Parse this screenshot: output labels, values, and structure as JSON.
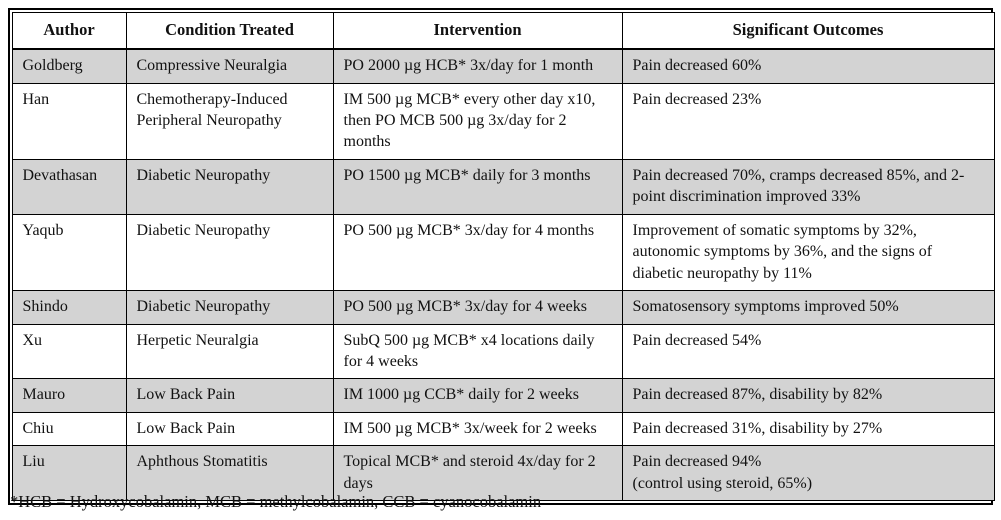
{
  "table": {
    "columns": [
      "Author",
      "Condition Treated",
      "Intervention",
      "Significant Outcomes"
    ],
    "rows": [
      {
        "author": "Goldberg",
        "condition": "Compressive Neuralgia",
        "intervention": "PO 2000 µg HCB* 3x/day for 1 month",
        "outcomes": "Pain decreased 60%",
        "shaded": true
      },
      {
        "author": "Han",
        "condition": "Chemotherapy-Induced Peripheral Neuropathy",
        "intervention": "IM 500 µg MCB* every other day x10, then PO MCB 500 µg 3x/day for 2 months",
        "outcomes": "Pain decreased 23%",
        "shaded": false
      },
      {
        "author": "Devathasan",
        "condition": "Diabetic Neuropathy",
        "intervention": "PO 1500 µg MCB* daily for 3 months",
        "outcomes": "Pain decreased 70%, cramps decreased 85%, and 2-point discrimination improved 33%",
        "shaded": true
      },
      {
        "author": "Yaqub",
        "condition": "Diabetic Neuropathy",
        "intervention": "PO 500 µg MCB* 3x/day for 4 months",
        "outcomes": "Improvement of somatic symptoms by 32%, autonomic symptoms by 36%, and the signs of diabetic neuropathy by 11%",
        "shaded": false
      },
      {
        "author": "Shindo",
        "condition": "Diabetic Neuropathy",
        "intervention": "PO 500 µg MCB* 3x/day for 4 weeks",
        "outcomes": "Somatosensory symptoms improved 50%",
        "shaded": true
      },
      {
        "author": "Xu",
        "condition": "Herpetic Neuralgia",
        "intervention": "SubQ 500 µg MCB* x4 locations daily for 4 weeks",
        "outcomes": "Pain decreased 54%",
        "shaded": false
      },
      {
        "author": "Mauro",
        "condition": "Low Back Pain",
        "intervention": "IM 1000 µg CCB* daily for 2 weeks",
        "outcomes": "Pain decreased 87%, disability by 82%",
        "shaded": true
      },
      {
        "author": "Chiu",
        "condition": "Low Back Pain",
        "intervention": "IM 500 µg MCB* 3x/week for 2 weeks",
        "outcomes": "Pain decreased 31%, disability by 27%",
        "shaded": false
      },
      {
        "author": "Liu",
        "condition": "Aphthous Stomatitis",
        "intervention": "Topical MCB* and steroid 4x/day for 2 days",
        "outcomes": "Pain decreased 94%\n(control using steroid, 65%)",
        "shaded": true
      }
    ]
  },
  "footnote": "*HCB = Hydroxycobalamin, MCB = methylcobalamin, CCB = cyanocobalamin",
  "colors": {
    "shaded_row": "#d3d3d3",
    "border": "#000000",
    "text": "#111111"
  }
}
